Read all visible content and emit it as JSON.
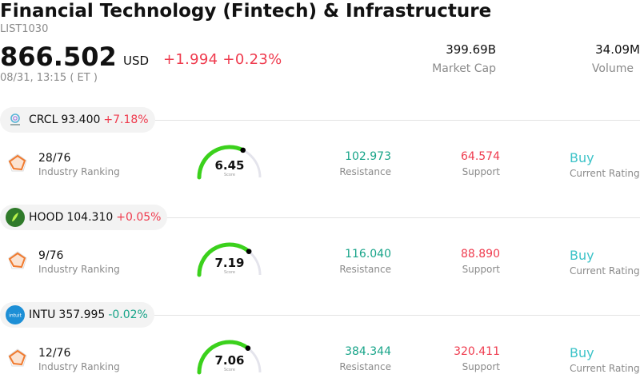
{
  "header": {
    "title": "Financial Technology (Fintech) & Infrastructure",
    "code": "LIST1030",
    "price": "866.502",
    "currency": "USD",
    "change": "+1.994 +0.23%",
    "timestamp": "08/31, 13:15  ( ET )",
    "market_cap_value": "399.69B",
    "market_cap_label": "Market Cap",
    "volume_value": "34.09M",
    "volume_label": "Volume"
  },
  "stocks": [
    {
      "symbol": "CRCL",
      "price": "93.400",
      "change_pct": "+7.18%",
      "direction": "up",
      "logo_icon": "circle-logo-icon",
      "logo_color": "#ffffff",
      "ranking": "28/76",
      "ranking_label": "Industry Ranking",
      "score": "6.45",
      "score_value": 6.45,
      "score_label": "Score",
      "resistance": "102.973",
      "resistance_label": "Resistance",
      "support": "64.574",
      "support_label": "Support",
      "rating": "Buy",
      "rating_label": "Current Rating"
    },
    {
      "symbol": "HOOD",
      "price": "104.310",
      "change_pct": "+0.05%",
      "direction": "up",
      "logo_icon": "robinhood-feather-icon",
      "logo_color": "#2f7a2a",
      "ranking": "9/76",
      "ranking_label": "Industry Ranking",
      "score": "7.19",
      "score_value": 7.19,
      "score_label": "Score",
      "resistance": "116.040",
      "resistance_label": "Resistance",
      "support": "88.890",
      "support_label": "Support",
      "rating": "Buy",
      "rating_label": "Current Rating"
    },
    {
      "symbol": "INTU",
      "price": "357.995",
      "change_pct": "-0.02%",
      "direction": "down",
      "logo_icon": "intuit-logo-icon",
      "logo_color": "#1d8fd6",
      "logo_text": "intuit",
      "ranking": "12/76",
      "ranking_label": "Industry Ranking",
      "score": "7.06",
      "score_value": 7.06,
      "score_label": "Score",
      "resistance": "384.344",
      "resistance_label": "Resistance",
      "support": "320.411",
      "support_label": "Support",
      "rating": "Buy",
      "rating_label": "Current Rating"
    }
  ],
  "colors": {
    "up": "#ef3b4e",
    "down": "#18a489",
    "rating": "#3cc3c8",
    "gauge_fill": "#3bd11c",
    "gauge_track": "#e4e4ec",
    "radar": "#f07a2e"
  }
}
